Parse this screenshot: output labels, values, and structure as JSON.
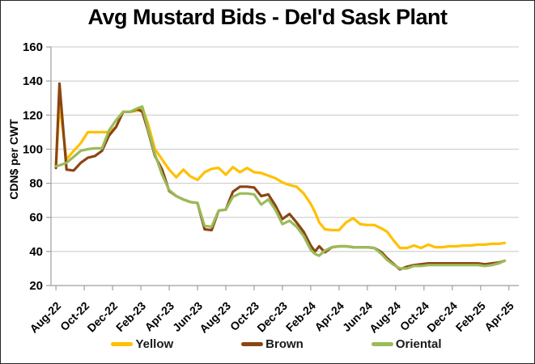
{
  "chart_data": {
    "type": "line",
    "title": "Avg Mustard Bids - Del'd Sask Plant",
    "ylabel": "CDN$ per CWT",
    "xlabel": "",
    "ylim": [
      20,
      160
    ],
    "yticks": [
      20,
      40,
      60,
      80,
      100,
      120,
      140,
      160
    ],
    "grid": "horizontal",
    "legend_position": "bottom",
    "x_unit": "months since Aug-2022 (weekly bid series, sampled)",
    "xlim": [
      -0.35,
      32.7
    ],
    "xtick_pos": [
      0,
      2,
      4,
      6,
      8,
      10,
      12,
      14,
      16,
      18,
      20,
      22,
      24,
      26,
      28,
      30,
      32
    ],
    "xtick_labels": [
      "Aug-22",
      "Oct-22",
      "Dec-22",
      "Feb-23",
      "Apr-23",
      "Jun-23",
      "Aug-23",
      "Oct-23",
      "Dec-23",
      "Feb-24",
      "Apr-24",
      "Jun-24",
      "Aug-24",
      "Oct-24",
      "Dec-24",
      "Feb-25",
      "Apr-25"
    ],
    "x": [
      0,
      0.25,
      0.75,
      1.25,
      1.75,
      2.25,
      2.75,
      3.25,
      3.75,
      4.25,
      4.75,
      5.25,
      5.75,
      6.1,
      6.5,
      7,
      7.5,
      8,
      8.5,
      9,
      9.5,
      10,
      10.5,
      11,
      11.5,
      12,
      12.5,
      13,
      13.5,
      14,
      14.5,
      15,
      15.5,
      16,
      16.5,
      17,
      17.5,
      18,
      18.3,
      18.6,
      19,
      19.5,
      20,
      20.5,
      21,
      21.5,
      22,
      22.5,
      23,
      23.4,
      23.8,
      24.3,
      24.8,
      25.3,
      25.8,
      26.3,
      26.8,
      27.3,
      27.8,
      28.3,
      28.8,
      29.3,
      29.8,
      30.3,
      30.8,
      31.3,
      31.7
    ],
    "series": [
      {
        "name": "Yellow",
        "color": "#FFC000",
        "values": [
          90,
          127,
          94,
          99,
          103.5,
          110,
          110,
          110,
          110,
          113,
          122,
          122,
          122.5,
          124.5,
          115,
          100,
          94,
          88,
          83.5,
          88,
          84,
          82,
          86.5,
          88.5,
          89,
          85,
          89.5,
          86.5,
          89,
          86.5,
          86,
          84.5,
          83,
          80.5,
          79,
          78,
          74,
          68,
          63,
          57,
          53,
          52.5,
          52.5,
          57,
          59.5,
          56,
          55.5,
          55.5,
          53.5,
          51.5,
          47,
          42,
          42,
          43.5,
          42,
          44,
          42.5,
          42.5,
          43,
          43,
          43.5,
          43.5,
          44,
          44,
          44.5,
          44.5,
          45
        ]
      },
      {
        "name": "Brown",
        "color": "#8B4513",
        "values": [
          89,
          138.5,
          88,
          87.5,
          92,
          95,
          96,
          99,
          108,
          113,
          122,
          122,
          123.5,
          122,
          111,
          96,
          88,
          75.5,
          72.5,
          70.5,
          69,
          68.5,
          53,
          52.5,
          64,
          64.5,
          75,
          78,
          78,
          77.5,
          72.5,
          73.5,
          67,
          59,
          62,
          57,
          51.5,
          43.5,
          40,
          43,
          39.5,
          42.5,
          43,
          43,
          42.5,
          42.5,
          42.5,
          42,
          39.5,
          36,
          33,
          29.5,
          31,
          32,
          32.5,
          33,
          33,
          33,
          33,
          33,
          33,
          33,
          33,
          32.5,
          33,
          33.5,
          34.5
        ]
      },
      {
        "name": "Oriental",
        "color": "#9BBB59",
        "values": [
          90,
          90.5,
          92,
          95.5,
          99,
          100,
          100.5,
          100.5,
          111,
          117,
          122,
          122,
          124,
          125,
          112,
          97,
          85,
          76,
          72.5,
          70.5,
          69,
          68.5,
          55,
          54.5,
          64,
          64.5,
          72,
          74,
          74,
          73.5,
          67.5,
          70.5,
          64.5,
          56,
          58,
          54.5,
          49,
          41,
          38.5,
          37.5,
          40.5,
          42.5,
          43,
          43,
          42.5,
          42.5,
          42.5,
          42,
          38.5,
          35,
          32.5,
          30,
          30,
          31.5,
          31.5,
          32,
          32,
          32,
          32,
          32,
          32,
          32,
          32,
          31.5,
          32,
          33,
          34.5
        ]
      }
    ],
    "style": {
      "gridline_color": "#C8C8C8",
      "axis_color": "#9E9E9E",
      "line_width": 3.2
    }
  }
}
